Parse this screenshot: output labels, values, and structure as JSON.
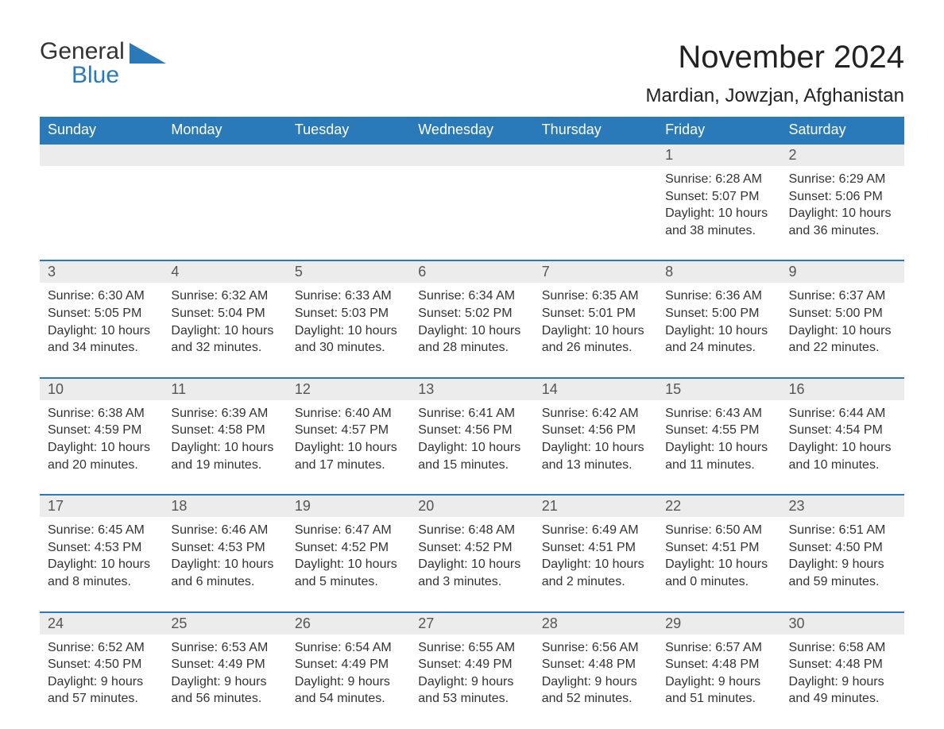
{
  "logo": {
    "text1": "General",
    "text2": "Blue",
    "shape_color": "#2a7ab9"
  },
  "title": "November 2024",
  "location": "Mardian, Jowzjan, Afghanistan",
  "colors": {
    "header_bg": "#2a7ab9",
    "header_fg": "#ffffff",
    "daybar_bg": "#ececec",
    "border": "#2a7ab9",
    "text": "#333333"
  },
  "days_of_week": [
    "Sunday",
    "Monday",
    "Tuesday",
    "Wednesday",
    "Thursday",
    "Friday",
    "Saturday"
  ],
  "weeks": [
    [
      null,
      null,
      null,
      null,
      null,
      {
        "n": "1",
        "sunrise": "Sunrise: 6:28 AM",
        "sunset": "Sunset: 5:07 PM",
        "day1": "Daylight: 10 hours",
        "day2": "and 38 minutes."
      },
      {
        "n": "2",
        "sunrise": "Sunrise: 6:29 AM",
        "sunset": "Sunset: 5:06 PM",
        "day1": "Daylight: 10 hours",
        "day2": "and 36 minutes."
      }
    ],
    [
      {
        "n": "3",
        "sunrise": "Sunrise: 6:30 AM",
        "sunset": "Sunset: 5:05 PM",
        "day1": "Daylight: 10 hours",
        "day2": "and 34 minutes."
      },
      {
        "n": "4",
        "sunrise": "Sunrise: 6:32 AM",
        "sunset": "Sunset: 5:04 PM",
        "day1": "Daylight: 10 hours",
        "day2": "and 32 minutes."
      },
      {
        "n": "5",
        "sunrise": "Sunrise: 6:33 AM",
        "sunset": "Sunset: 5:03 PM",
        "day1": "Daylight: 10 hours",
        "day2": "and 30 minutes."
      },
      {
        "n": "6",
        "sunrise": "Sunrise: 6:34 AM",
        "sunset": "Sunset: 5:02 PM",
        "day1": "Daylight: 10 hours",
        "day2": "and 28 minutes."
      },
      {
        "n": "7",
        "sunrise": "Sunrise: 6:35 AM",
        "sunset": "Sunset: 5:01 PM",
        "day1": "Daylight: 10 hours",
        "day2": "and 26 minutes."
      },
      {
        "n": "8",
        "sunrise": "Sunrise: 6:36 AM",
        "sunset": "Sunset: 5:00 PM",
        "day1": "Daylight: 10 hours",
        "day2": "and 24 minutes."
      },
      {
        "n": "9",
        "sunrise": "Sunrise: 6:37 AM",
        "sunset": "Sunset: 5:00 PM",
        "day1": "Daylight: 10 hours",
        "day2": "and 22 minutes."
      }
    ],
    [
      {
        "n": "10",
        "sunrise": "Sunrise: 6:38 AM",
        "sunset": "Sunset: 4:59 PM",
        "day1": "Daylight: 10 hours",
        "day2": "and 20 minutes."
      },
      {
        "n": "11",
        "sunrise": "Sunrise: 6:39 AM",
        "sunset": "Sunset: 4:58 PM",
        "day1": "Daylight: 10 hours",
        "day2": "and 19 minutes."
      },
      {
        "n": "12",
        "sunrise": "Sunrise: 6:40 AM",
        "sunset": "Sunset: 4:57 PM",
        "day1": "Daylight: 10 hours",
        "day2": "and 17 minutes."
      },
      {
        "n": "13",
        "sunrise": "Sunrise: 6:41 AM",
        "sunset": "Sunset: 4:56 PM",
        "day1": "Daylight: 10 hours",
        "day2": "and 15 minutes."
      },
      {
        "n": "14",
        "sunrise": "Sunrise: 6:42 AM",
        "sunset": "Sunset: 4:56 PM",
        "day1": "Daylight: 10 hours",
        "day2": "and 13 minutes."
      },
      {
        "n": "15",
        "sunrise": "Sunrise: 6:43 AM",
        "sunset": "Sunset: 4:55 PM",
        "day1": "Daylight: 10 hours",
        "day2": "and 11 minutes."
      },
      {
        "n": "16",
        "sunrise": "Sunrise: 6:44 AM",
        "sunset": "Sunset: 4:54 PM",
        "day1": "Daylight: 10 hours",
        "day2": "and 10 minutes."
      }
    ],
    [
      {
        "n": "17",
        "sunrise": "Sunrise: 6:45 AM",
        "sunset": "Sunset: 4:53 PM",
        "day1": "Daylight: 10 hours",
        "day2": "and 8 minutes."
      },
      {
        "n": "18",
        "sunrise": "Sunrise: 6:46 AM",
        "sunset": "Sunset: 4:53 PM",
        "day1": "Daylight: 10 hours",
        "day2": "and 6 minutes."
      },
      {
        "n": "19",
        "sunrise": "Sunrise: 6:47 AM",
        "sunset": "Sunset: 4:52 PM",
        "day1": "Daylight: 10 hours",
        "day2": "and 5 minutes."
      },
      {
        "n": "20",
        "sunrise": "Sunrise: 6:48 AM",
        "sunset": "Sunset: 4:52 PM",
        "day1": "Daylight: 10 hours",
        "day2": "and 3 minutes."
      },
      {
        "n": "21",
        "sunrise": "Sunrise: 6:49 AM",
        "sunset": "Sunset: 4:51 PM",
        "day1": "Daylight: 10 hours",
        "day2": "and 2 minutes."
      },
      {
        "n": "22",
        "sunrise": "Sunrise: 6:50 AM",
        "sunset": "Sunset: 4:51 PM",
        "day1": "Daylight: 10 hours",
        "day2": "and 0 minutes."
      },
      {
        "n": "23",
        "sunrise": "Sunrise: 6:51 AM",
        "sunset": "Sunset: 4:50 PM",
        "day1": "Daylight: 9 hours",
        "day2": "and 59 minutes."
      }
    ],
    [
      {
        "n": "24",
        "sunrise": "Sunrise: 6:52 AM",
        "sunset": "Sunset: 4:50 PM",
        "day1": "Daylight: 9 hours",
        "day2": "and 57 minutes."
      },
      {
        "n": "25",
        "sunrise": "Sunrise: 6:53 AM",
        "sunset": "Sunset: 4:49 PM",
        "day1": "Daylight: 9 hours",
        "day2": "and 56 minutes."
      },
      {
        "n": "26",
        "sunrise": "Sunrise: 6:54 AM",
        "sunset": "Sunset: 4:49 PM",
        "day1": "Daylight: 9 hours",
        "day2": "and 54 minutes."
      },
      {
        "n": "27",
        "sunrise": "Sunrise: 6:55 AM",
        "sunset": "Sunset: 4:49 PM",
        "day1": "Daylight: 9 hours",
        "day2": "and 53 minutes."
      },
      {
        "n": "28",
        "sunrise": "Sunrise: 6:56 AM",
        "sunset": "Sunset: 4:48 PM",
        "day1": "Daylight: 9 hours",
        "day2": "and 52 minutes."
      },
      {
        "n": "29",
        "sunrise": "Sunrise: 6:57 AM",
        "sunset": "Sunset: 4:48 PM",
        "day1": "Daylight: 9 hours",
        "day2": "and 51 minutes."
      },
      {
        "n": "30",
        "sunrise": "Sunrise: 6:58 AM",
        "sunset": "Sunset: 4:48 PM",
        "day1": "Daylight: 9 hours",
        "day2": "and 49 minutes."
      }
    ]
  ]
}
